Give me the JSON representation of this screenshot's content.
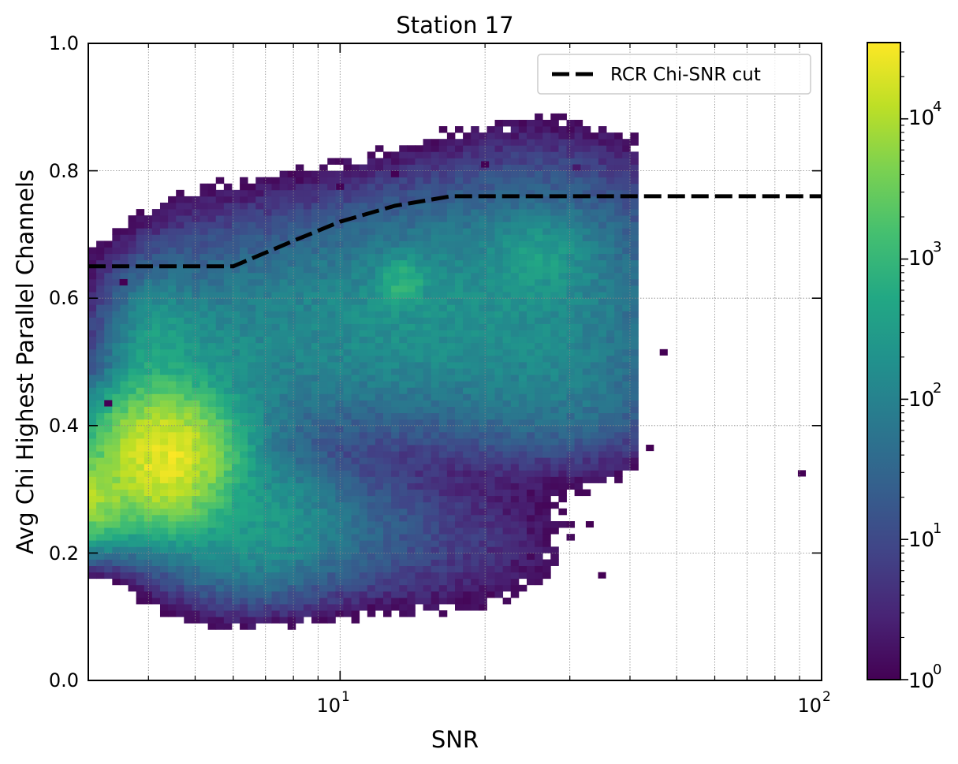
{
  "chart_data": {
    "type": "heatmap",
    "title": "Station 17",
    "xlabel": "SNR",
    "ylabel": "Avg Chi Highest Parallel Channels",
    "x_scale": "log",
    "xlim": [
      3,
      100
    ],
    "ylim": [
      0.0,
      1.0
    ],
    "grid": true,
    "legend_position": "top-right",
    "x_tick_labels": [
      {
        "value": 10,
        "base": "10",
        "exp": "1"
      },
      {
        "value": 100,
        "base": "10",
        "exp": "2"
      }
    ],
    "y_tick_labels": [
      {
        "value": 0.0,
        "label": "0.0"
      },
      {
        "value": 0.2,
        "label": "0.2"
      },
      {
        "value": 0.4,
        "label": "0.4"
      },
      {
        "value": 0.6,
        "label": "0.6"
      },
      {
        "value": 0.8,
        "label": "0.8"
      },
      {
        "value": 1.0,
        "label": "1.0"
      }
    ],
    "colorbar": {
      "scale": "log",
      "colormap": "viridis",
      "range": [
        1,
        35000
      ],
      "tick_labels": [
        {
          "value": 1,
          "base": "10",
          "exp": "0"
        },
        {
          "value": 10,
          "base": "10",
          "exp": "1"
        },
        {
          "value": 100,
          "base": "10",
          "exp": "2"
        },
        {
          "value": 1000,
          "base": "10",
          "exp": "3"
        },
        {
          "value": 10000,
          "base": "10",
          "exp": "4"
        }
      ]
    },
    "cut_line": {
      "name": "RCR Chi-SNR cut",
      "style": "dashed",
      "color": "#000000",
      "points": [
        [
          3,
          0.65
        ],
        [
          6,
          0.65
        ],
        [
          8,
          0.69
        ],
        [
          10,
          0.72
        ],
        [
          13,
          0.745
        ],
        [
          17,
          0.76
        ],
        [
          100,
          0.76
        ]
      ]
    },
    "density_components": [
      {
        "snr": 3.0,
        "chi": 0.29,
        "sigma_log_snr": 0.045,
        "sigma_chi": 0.03,
        "peak": 9000
      },
      {
        "snr": 4.3,
        "chi": 0.35,
        "sigma_log_snr": 0.06,
        "sigma_chi": 0.045,
        "peak": 25000
      },
      {
        "snr": 4.2,
        "chi": 0.5,
        "sigma_log_snr": 0.045,
        "sigma_chi": 0.06,
        "peak": 400
      },
      {
        "snr": 5.2,
        "chi": 0.43,
        "sigma_log_snr": 0.09,
        "sigma_chi": 0.09,
        "peak": 250
      },
      {
        "snr": 6.5,
        "chi": 0.25,
        "sigma_log_snr": 0.09,
        "sigma_chi": 0.05,
        "peak": 300
      },
      {
        "snr": 9.0,
        "chi": 0.24,
        "sigma_log_snr": 0.12,
        "sigma_chi": 0.05,
        "peak": 40
      },
      {
        "snr": 9.0,
        "chi": 0.55,
        "sigma_log_snr": 0.17,
        "sigma_chi": 0.08,
        "peak": 120
      },
      {
        "snr": 13.5,
        "chi": 0.625,
        "sigma_log_snr": 0.025,
        "sigma_chi": 0.02,
        "peak": 800
      },
      {
        "snr": 15.0,
        "chi": 0.58,
        "sigma_log_snr": 0.12,
        "sigma_chi": 0.08,
        "peak": 140
      },
      {
        "snr": 26.0,
        "chi": 0.6,
        "sigma_log_snr": 0.13,
        "sigma_chi": 0.09,
        "peak": 160
      },
      {
        "snr": 26.0,
        "chi": 0.665,
        "sigma_log_snr": 0.05,
        "sigma_chi": 0.03,
        "peak": 250
      },
      {
        "snr": 28.0,
        "chi": 0.46,
        "sigma_log_snr": 0.12,
        "sigma_chi": 0.05,
        "peak": 60
      },
      {
        "snr": 16.0,
        "chi": 0.22,
        "sigma_log_snr": 0.14,
        "sigma_chi": 0.06,
        "peak": 6
      }
    ],
    "isolated_bins": [
      {
        "snr": 91,
        "chi": 0.325,
        "count": 1
      },
      {
        "snr": 44,
        "chi": 0.365,
        "count": 1
      },
      {
        "snr": 47,
        "chi": 0.515,
        "count": 1
      },
      {
        "snr": 20,
        "chi": 0.81,
        "count": 1
      },
      {
        "snr": 13,
        "chi": 0.795,
        "count": 1
      },
      {
        "snr": 10,
        "chi": 0.775,
        "count": 1
      },
      {
        "snr": 31,
        "chi": 0.805,
        "count": 2
      },
      {
        "snr": 33,
        "chi": 0.245,
        "count": 1
      },
      {
        "snr": 35,
        "chi": 0.165,
        "count": 1
      },
      {
        "snr": 3.3,
        "chi": 0.435,
        "count": 1
      },
      {
        "snr": 3.55,
        "chi": 0.625,
        "count": 1
      }
    ]
  }
}
